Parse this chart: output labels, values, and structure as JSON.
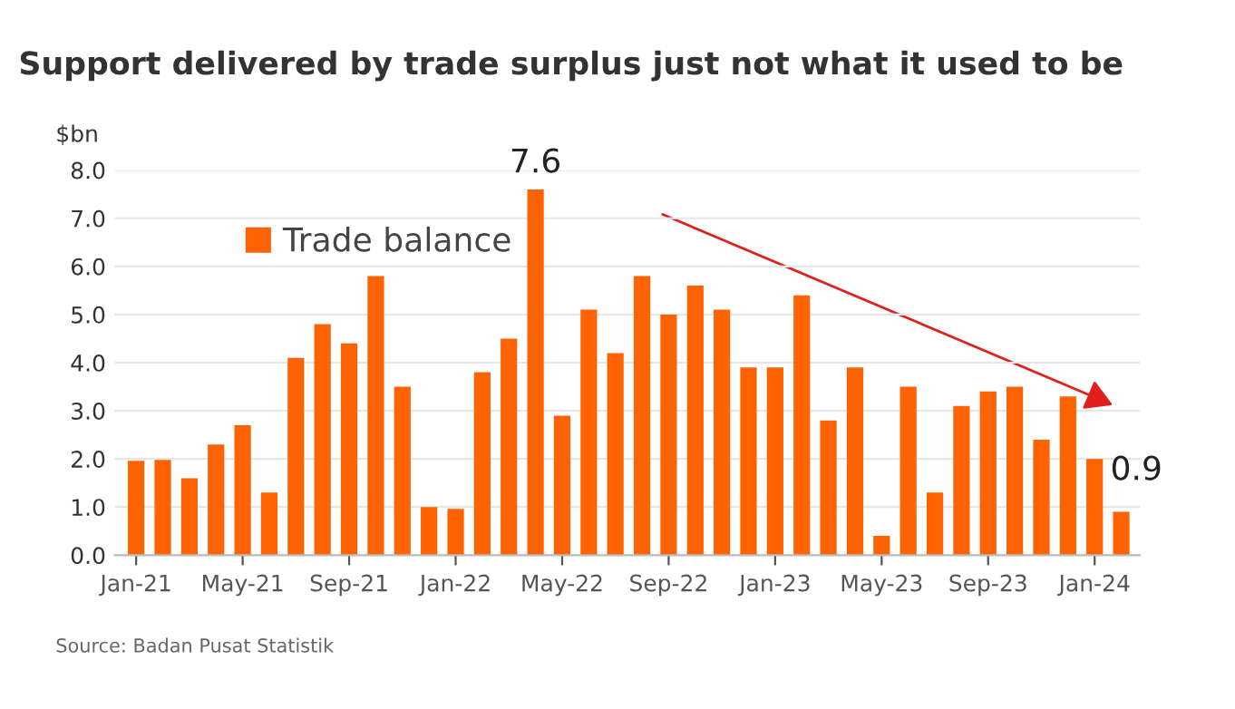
{
  "chart_data": {
    "type": "bar",
    "title": "Support delivered by trade surplus just not what it used to be",
    "ylabel": "$bn",
    "categories": [
      "Jan-21",
      null,
      null,
      null,
      "May-21",
      null,
      null,
      null,
      "Sep-21",
      null,
      null,
      null,
      "Jan-22",
      null,
      null,
      null,
      "May-22",
      null,
      null,
      null,
      "Sep-22",
      null,
      null,
      null,
      "Jan-23",
      null,
      null,
      null,
      "May-23",
      null,
      null,
      null,
      "Sep-23",
      null,
      null,
      null,
      "Jan-24",
      null
    ],
    "series": [
      {
        "name": "Trade balance",
        "color": "#ff6200",
        "values": [
          1.96,
          1.98,
          1.6,
          2.3,
          2.7,
          1.3,
          4.1,
          4.8,
          4.4,
          5.8,
          3.5,
          1.0,
          0.96,
          3.8,
          4.5,
          7.6,
          2.9,
          5.1,
          4.2,
          5.8,
          5.0,
          5.6,
          5.1,
          3.9,
          3.9,
          5.4,
          2.8,
          3.9,
          0.4,
          3.5,
          1.3,
          3.1,
          3.4,
          3.5,
          2.4,
          3.3,
          2.0,
          0.9
        ],
        "value_labels": [
          null,
          null,
          null,
          null,
          null,
          null,
          null,
          null,
          null,
          null,
          null,
          null,
          null,
          null,
          null,
          "7.6",
          null,
          null,
          null,
          null,
          null,
          null,
          null,
          null,
          null,
          null,
          null,
          null,
          null,
          null,
          null,
          null,
          null,
          null,
          null,
          null,
          null,
          "0.9"
        ]
      }
    ],
    "ylim": [
      0,
      8
    ],
    "yticks": [
      {
        "value": 0,
        "label": "0.0"
      },
      {
        "value": 1,
        "label": "1.0"
      },
      {
        "value": 2,
        "label": "2.0"
      },
      {
        "value": 3,
        "label": "3.0"
      },
      {
        "value": 4,
        "label": "4.0"
      },
      {
        "value": 5,
        "label": "5.0"
      },
      {
        "value": 6,
        "label": "6.0"
      },
      {
        "value": 7,
        "label": "7.0"
      },
      {
        "value": 8,
        "label": "8.0"
      }
    ],
    "grid": "y",
    "legend": "top left",
    "annotations": [
      "Source: Badan Pusat Statistik"
    ]
  }
}
